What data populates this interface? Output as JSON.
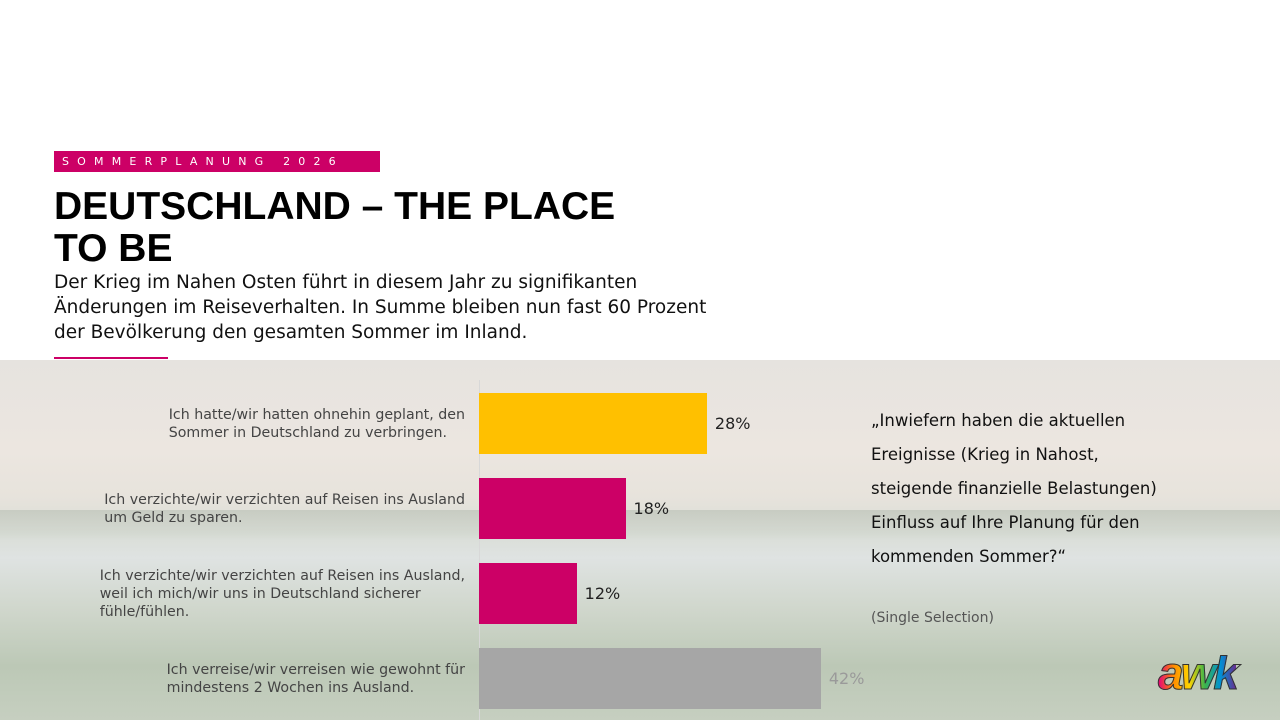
{
  "header": {
    "tag": "SOMMERPLANUNG 2026",
    "title": "DEUTSCHLAND – THE PLACE\nTO BE",
    "subtitle": "Der Krieg im Nahen Osten führt in diesem Jahr zu signifikanten\nÄnderungen im Reiseverhalten. In Summe bleiben nun fast 60 Prozent\nder Bevölkerung den gesamten Sommer im Inland."
  },
  "chart_data": {
    "type": "bar",
    "orientation": "horizontal",
    "categories": [
      "Ich hatte/wir hatten ohnehin geplant, den\nSommer in Deutschland zu verbringen.",
      "Ich verzichte/wir verzichten auf Reisen ins Ausland\num Geld zu sparen.",
      "Ich verzichte/wir verzichten auf Reisen ins Ausland,\nweil ich mich/wir uns in Deutschland sicherer\nfühle/fühlen.",
      "Ich verreise/wir verreisen wie gewohnt für\nmindestens 2 Wochen ins Ausland."
    ],
    "values": [
      28,
      18,
      12,
      42
    ],
    "value_labels": [
      "28%",
      "18%",
      "12%",
      "42%"
    ],
    "colors": [
      "#ffc000",
      "#cc0066",
      "#cc0066",
      "#a6a6a6"
    ]
  },
  "question": {
    "text": "„Inwiefern haben die aktuellen\nEreignisse (Krieg in Nahost,\nsteigende finanzielle Belastungen)\nEinfluss auf Ihre Planung für den\nkommenden Sommer?“",
    "note": "(Single Selection)"
  },
  "logo": "awk"
}
